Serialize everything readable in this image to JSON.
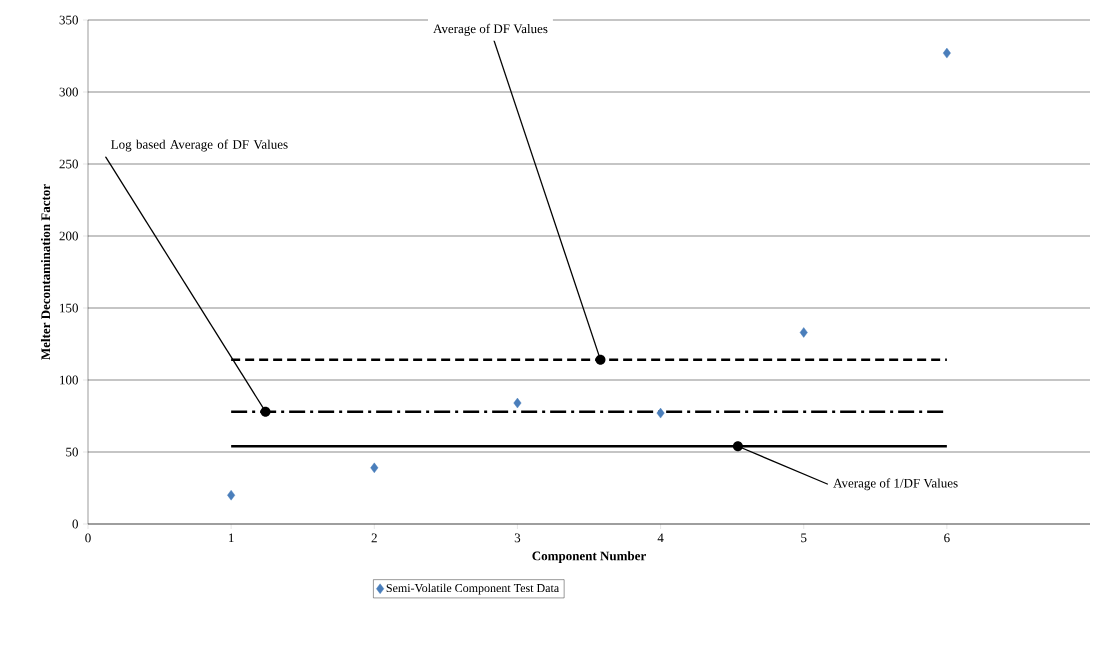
{
  "chart_data": {
    "type": "scatter",
    "xlabel": "Component Number",
    "ylabel": "Melter Decontamination Factor",
    "xlim": [
      0,
      7
    ],
    "xticks": [
      0,
      1,
      2,
      3,
      4,
      5,
      6
    ],
    "ylim": [
      0,
      350
    ],
    "yticks": [
      0,
      50,
      100,
      150,
      200,
      250,
      300,
      350
    ],
    "grid": "y",
    "legend": "bottom",
    "marker": "diamond",
    "series": [
      {
        "name": "Semi-Volatile Component Test Data",
        "color": "#4a7ebb",
        "x": [
          1,
          2,
          3,
          4,
          5,
          6
        ],
        "values": [
          20,
          39,
          84,
          77,
          133,
          327
        ]
      },
      {
        "type": "line",
        "color": "#000000",
        "line_style": "dashed",
        "marker": "none",
        "x": [
          1,
          6
        ],
        "values": [
          114,
          114
        ]
      },
      {
        "type": "line",
        "color": "#000000",
        "line_style": "dashdot",
        "marker": "none",
        "x": [
          1,
          6
        ],
        "values": [
          78,
          78
        ]
      },
      {
        "type": "line",
        "color": "#000000",
        "line_style": "solid",
        "marker": "none",
        "x": [
          1,
          6
        ],
        "values": [
          54,
          54
        ]
      }
    ],
    "annotations": [
      {
        "text": "Average of DF Values",
        "x": 3.58,
        "y": 114
      },
      {
        "text": "Log based Average of DF Values",
        "x": 1.24,
        "y": 78
      },
      {
        "text": "Average of 1/DF Values",
        "x": 4.54,
        "y": 54
      }
    ]
  }
}
